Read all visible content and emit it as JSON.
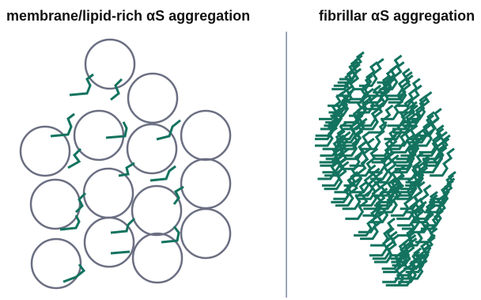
{
  "left_panel": {
    "title": "membrane/lipid-rich αS aggregation"
  },
  "right_panel": {
    "title": "fibrillar αS aggregation"
  }
}
